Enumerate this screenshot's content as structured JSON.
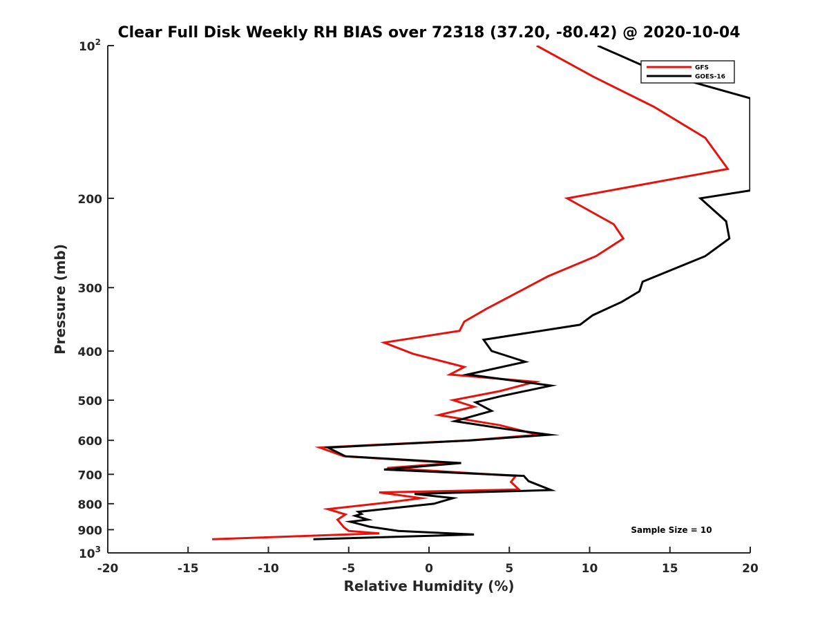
{
  "chart_data": {
    "type": "line",
    "title": "Clear Full Disk Weekly RH BIAS over 72318 (37.20, -80.42) @ 2020-10-04",
    "xlabel": "Relative Humidity (%)",
    "ylabel": "Pressure (mb)",
    "xlim": [
      -20,
      20
    ],
    "ylim": [
      100,
      1000
    ],
    "y_scale": "log",
    "y_reversed": true,
    "grid": false,
    "legend_position": "top-right",
    "x_ticks": [
      "-20",
      "-15",
      "-10",
      "-5",
      "0",
      "5",
      "10",
      "15",
      "20"
    ],
    "y_ticks": [
      {
        "base": "10",
        "exp": "2"
      },
      {
        "base": "200",
        "exp": ""
      },
      {
        "base": "300",
        "exp": ""
      },
      {
        "base": "400",
        "exp": ""
      },
      {
        "base": "500",
        "exp": ""
      },
      {
        "base": "600",
        "exp": ""
      },
      {
        "base": "700",
        "exp": ""
      },
      {
        "base": "800",
        "exp": ""
      },
      {
        "base": "900",
        "exp": ""
      },
      {
        "base": "10",
        "exp": "3"
      }
    ],
    "annotation": "Sample Size = 10",
    "series": [
      {
        "name": "GFS",
        "color": "#e8120c",
        "points": [
          {
            "x": 6.7,
            "p": 100
          },
          {
            "x": 10.2,
            "p": 115
          },
          {
            "x": 14.0,
            "p": 132
          },
          {
            "x": 17.2,
            "p": 152
          },
          {
            "x": 18.6,
            "p": 175
          },
          {
            "x": 8.6,
            "p": 200
          },
          {
            "x": 11.5,
            "p": 225
          },
          {
            "x": 12.1,
            "p": 240
          },
          {
            "x": 10.4,
            "p": 260
          },
          {
            "x": 7.4,
            "p": 285
          },
          {
            "x": 3.6,
            "p": 330
          },
          {
            "x": 2.2,
            "p": 350
          },
          {
            "x": 1.9,
            "p": 365
          },
          {
            "x": -2.8,
            "p": 385
          },
          {
            "x": -1.0,
            "p": 405
          },
          {
            "x": 2.2,
            "p": 430
          },
          {
            "x": 1.3,
            "p": 445
          },
          {
            "x": 6.6,
            "p": 460
          },
          {
            "x": 4.4,
            "p": 480
          },
          {
            "x": 1.5,
            "p": 500
          },
          {
            "x": 2.8,
            "p": 515
          },
          {
            "x": 0.6,
            "p": 535
          },
          {
            "x": 4.4,
            "p": 560
          },
          {
            "x": 6.8,
            "p": 585
          },
          {
            "x": 2.5,
            "p": 600
          },
          {
            "x": -6.8,
            "p": 620
          },
          {
            "x": -5.3,
            "p": 645
          },
          {
            "x": 1.5,
            "p": 665
          },
          {
            "x": -2.6,
            "p": 680
          },
          {
            "x": 5.4,
            "p": 705
          },
          {
            "x": 5.1,
            "p": 725
          },
          {
            "x": 5.6,
            "p": 750
          },
          {
            "x": -3.1,
            "p": 760
          },
          {
            "x": -0.5,
            "p": 780
          },
          {
            "x": -2.5,
            "p": 795
          },
          {
            "x": -6.3,
            "p": 820
          },
          {
            "x": -5.2,
            "p": 840
          },
          {
            "x": -5.7,
            "p": 860
          },
          {
            "x": -5.3,
            "p": 890
          },
          {
            "x": -5.0,
            "p": 905
          },
          {
            "x": -3.1,
            "p": 915
          },
          {
            "x": -13.5,
            "p": 940
          }
        ]
      },
      {
        "name": "GOES-16",
        "color": "#000000",
        "points": [
          {
            "x": 10.5,
            "p": 100
          },
          {
            "x": 14.3,
            "p": 113
          },
          {
            "x": 20,
            "p": 127
          },
          {
            "x": 20,
            "p": 193
          },
          {
            "x": 16.9,
            "p": 200
          },
          {
            "x": 18.5,
            "p": 222
          },
          {
            "x": 18.7,
            "p": 240
          },
          {
            "x": 17.2,
            "p": 260
          },
          {
            "x": 13.3,
            "p": 292
          },
          {
            "x": 13.1,
            "p": 305
          },
          {
            "x": 12.0,
            "p": 320
          },
          {
            "x": 10.2,
            "p": 340
          },
          {
            "x": 9.4,
            "p": 355
          },
          {
            "x": 3.4,
            "p": 380
          },
          {
            "x": 3.9,
            "p": 400
          },
          {
            "x": 6.0,
            "p": 420
          },
          {
            "x": 2.4,
            "p": 445
          },
          {
            "x": 7.6,
            "p": 468
          },
          {
            "x": 4.6,
            "p": 490
          },
          {
            "x": 2.9,
            "p": 505
          },
          {
            "x": 3.9,
            "p": 525
          },
          {
            "x": 1.6,
            "p": 550
          },
          {
            "x": 4.8,
            "p": 570
          },
          {
            "x": 7.5,
            "p": 585
          },
          {
            "x": 2.6,
            "p": 600
          },
          {
            "x": -6.3,
            "p": 620
          },
          {
            "x": -5.2,
            "p": 645
          },
          {
            "x": 2.0,
            "p": 665
          },
          {
            "x": -2.8,
            "p": 685
          },
          {
            "x": 5.9,
            "p": 705
          },
          {
            "x": 6.2,
            "p": 722
          },
          {
            "x": 7.6,
            "p": 752
          },
          {
            "x": -0.9,
            "p": 765
          },
          {
            "x": 1.5,
            "p": 780
          },
          {
            "x": 0.3,
            "p": 800
          },
          {
            "x": -4.4,
            "p": 830
          },
          {
            "x": -4.2,
            "p": 838
          },
          {
            "x": -4.6,
            "p": 845
          },
          {
            "x": -3.8,
            "p": 860
          },
          {
            "x": -4.9,
            "p": 868
          },
          {
            "x": -3.7,
            "p": 888
          },
          {
            "x": -1.9,
            "p": 905
          },
          {
            "x": 2.8,
            "p": 920
          },
          {
            "x": -7.2,
            "p": 940
          }
        ]
      }
    ]
  }
}
